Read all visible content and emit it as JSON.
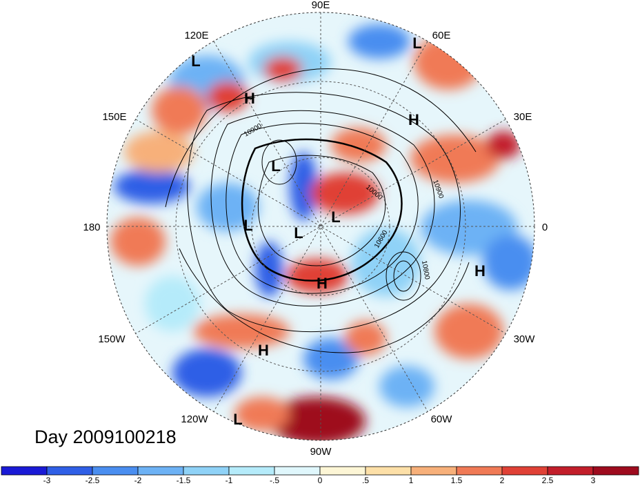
{
  "day_label": "Day 2009100218",
  "longitude_labels": [
    "90E",
    "60E",
    "30E",
    "0",
    "30W",
    "60W",
    "90W",
    "120W",
    "150W",
    "180",
    "150E",
    "120E"
  ],
  "pressure_systems": [
    "L",
    "L",
    "H",
    "H",
    "L",
    "L",
    "L",
    "L",
    "H",
    "H",
    "H",
    "L"
  ],
  "contour_labels": [
    "10900",
    "10800",
    "10900",
    "10000",
    "10600"
  ],
  "colorbar": {
    "ticks": [
      "-3",
      "-2.5",
      "-2",
      "-1.5",
      "-1",
      "-.5",
      "0",
      ".5",
      "1",
      "1.5",
      "2",
      "2.5",
      "3"
    ],
    "colors": [
      "#1a1ad6",
      "#2f5fe6",
      "#4a8ef0",
      "#6db2f5",
      "#8fd2f7",
      "#b5ebfa",
      "#e0f7fc",
      "#fdf6d6",
      "#fde0a8",
      "#f7b07a",
      "#f07a56",
      "#e04136",
      "#c21e2a",
      "#9e0b1e"
    ]
  }
}
